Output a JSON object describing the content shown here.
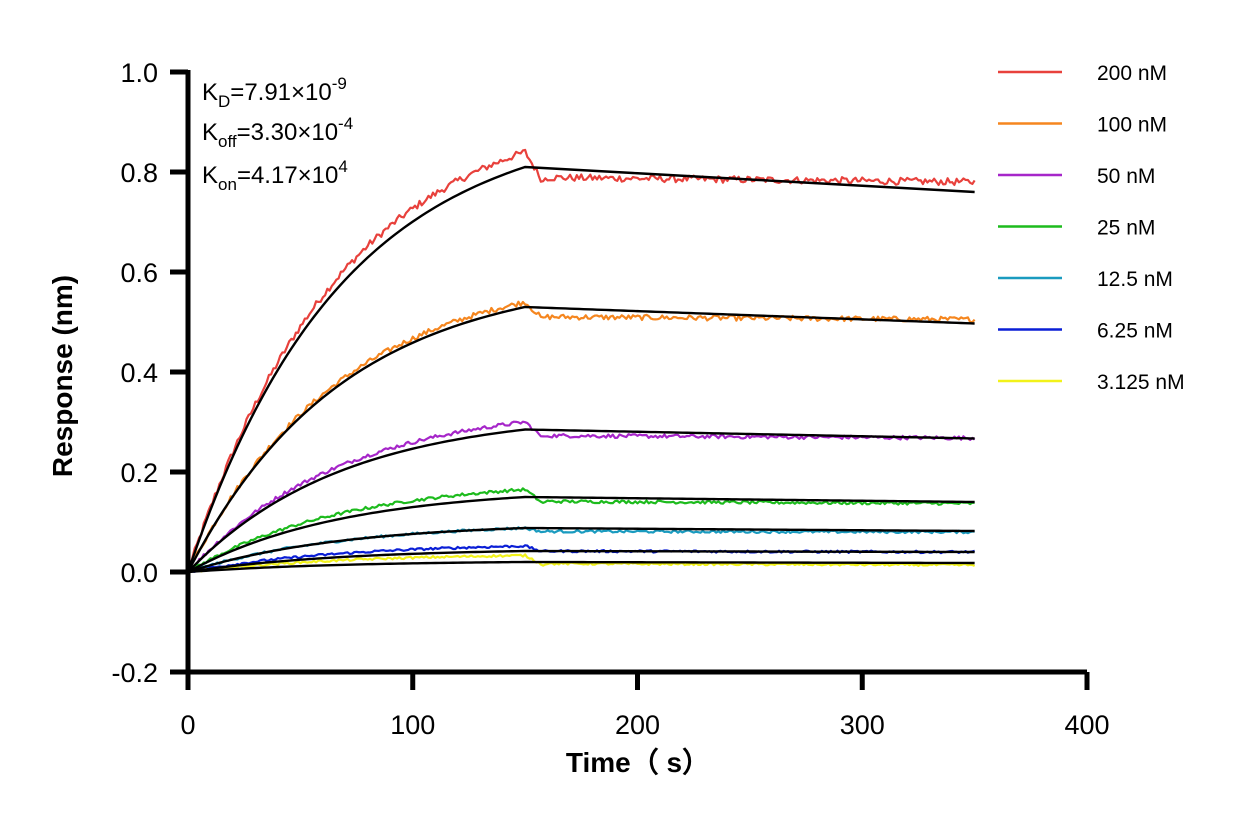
{
  "chart_data": {
    "type": "line",
    "xlabel": "Time（ s）",
    "ylabel": "Response (nm)",
    "xlim": [
      0,
      400
    ],
    "ylim": [
      -0.2,
      1.0
    ],
    "xticks": [
      "0",
      "100",
      "200",
      "300",
      "400"
    ],
    "yticks": [
      "-0.2",
      "0.0",
      "0.2",
      "0.4",
      "0.6",
      "0.8",
      "1.0"
    ],
    "grid": false,
    "legend_position": "top-right",
    "association_end": 150,
    "end_time": 350,
    "kinetics": [
      {
        "symbol": "K",
        "subscript": "D",
        "value": "=7.91×10",
        "exponent": "-9"
      },
      {
        "symbol": "K",
        "subscript": "off",
        "value": "=3.30×10",
        "exponent": "-4"
      },
      {
        "symbol": "K",
        "subscript": "on",
        "value": "=4.17×10",
        "exponent": "4"
      }
    ],
    "series": [
      {
        "name": "200 nM",
        "color": "#e8413c",
        "fit_peak": 0.81,
        "fit_end": 0.76,
        "obs_peak": 0.84,
        "obs_end": 0.78
      },
      {
        "name": "100 nM",
        "color": "#f5861f",
        "fit_peak": 0.53,
        "fit_end": 0.497,
        "obs_peak": 0.54,
        "obs_end": 0.505
      },
      {
        "name": "50 nM",
        "color": "#a626c9",
        "fit_peak": 0.285,
        "fit_end": 0.267,
        "obs_peak": 0.3,
        "obs_end": 0.268
      },
      {
        "name": "25 nM",
        "color": "#1dbb1d",
        "fit_peak": 0.15,
        "fit_end": 0.14,
        "obs_peak": 0.165,
        "obs_end": 0.137
      },
      {
        "name": "12.5 nM",
        "color": "#1a9bbf",
        "fit_peak": 0.088,
        "fit_end": 0.082,
        "obs_peak": 0.088,
        "obs_end": 0.08
      },
      {
        "name": "6.25 nM",
        "color": "#0a1ed6",
        "fit_peak": 0.042,
        "fit_end": 0.04,
        "obs_peak": 0.052,
        "obs_end": 0.04
      },
      {
        "name": "3.125 nM",
        "color": "#f2f21a",
        "fit_peak": 0.02,
        "fit_end": 0.018,
        "obs_peak": 0.033,
        "obs_end": 0.014
      }
    ]
  }
}
